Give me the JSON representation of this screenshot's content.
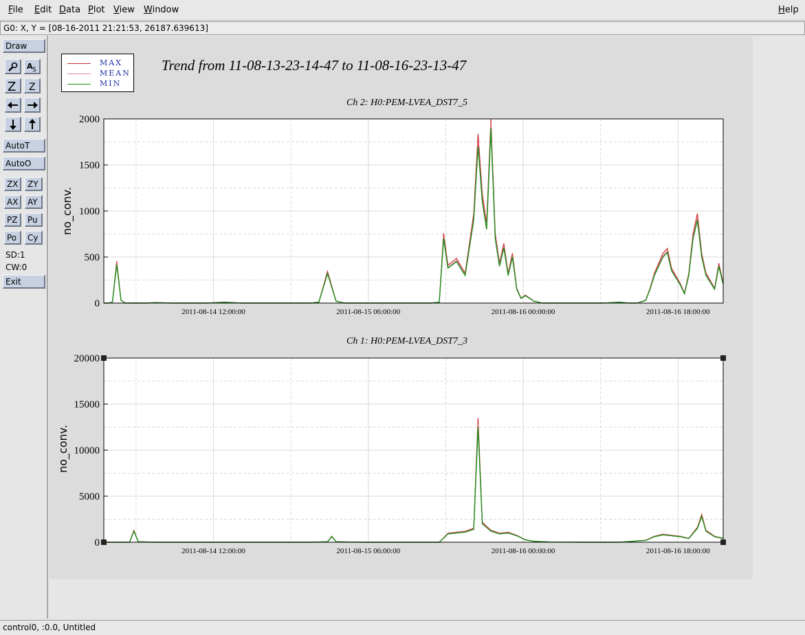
{
  "menubar": {
    "items": [
      {
        "label": "File",
        "ul": "F",
        "rest": "ile"
      },
      {
        "label": "Edit",
        "ul": "E",
        "rest": "dit"
      },
      {
        "label": "Data",
        "ul": "D",
        "rest": "ata"
      },
      {
        "label": "Plot",
        "ul": "P",
        "rest": "lot"
      },
      {
        "label": "View",
        "ul": "V",
        "rest": "iew"
      },
      {
        "label": "Window",
        "ul": "W",
        "rest": "indow"
      }
    ],
    "help": {
      "ul": "H",
      "rest": "elp"
    }
  },
  "coordbar": {
    "text": "G0: X, Y = [08-16-2011 21:21:53, 26187.639613]"
  },
  "toolbar": {
    "draw": "Draw",
    "autot": "AutoT",
    "autoo": "AutoO",
    "zx": "ZX",
    "zy": "ZY",
    "ax": "AX",
    "ay": "AY",
    "pz": "PZ",
    "pu": "Pu",
    "po": "Po",
    "cy": "Cy",
    "sd": "SD:1",
    "cw": "CW:0",
    "exit": "Exit"
  },
  "legend": {
    "entries": [
      {
        "name": "MAX",
        "color": "#cc2b2b"
      },
      {
        "name": "MEAN",
        "color": "#e87fa0"
      },
      {
        "name": "MIN",
        "color": "#1a8c1a"
      }
    ]
  },
  "trend_title": "Trend from 11-08-13-23-14-47 to 11-08-16-23-13-47",
  "statusbar": {
    "text": "control0, :0.0, Untitled"
  },
  "chart_data": [
    {
      "type": "line",
      "title": "Ch 2: H0:PEM-LVEA_DST7_5",
      "ylabel": "no_conv.",
      "xlabel": "",
      "x_tick_labels": [
        "2011-08-14 12:00:00",
        "2011-08-15 06:00:00",
        "2011-08-16 00:00:00",
        "2011-08-16 18:00:00"
      ],
      "y_ticks": [
        0,
        500,
        1000,
        1500,
        2000
      ],
      "y_tick_labels": [
        "0",
        "500",
        "1000",
        "1500",
        "2000"
      ],
      "ylim": [
        0,
        2000
      ],
      "xlim_hours": [
        0,
        72
      ],
      "grid": true,
      "series": [
        {
          "name": "MIN",
          "color": "#1a8c1a"
        },
        {
          "name": "MAX",
          "color": "#cc2b2b"
        },
        {
          "name": "MEAN",
          "color": "#e87fa0"
        }
      ],
      "x_hours": [
        0,
        0.5,
        1,
        1.5,
        2,
        2.5,
        3,
        3.5,
        4,
        5,
        6,
        8,
        10,
        12,
        14,
        16,
        18,
        20,
        22,
        24,
        25,
        26,
        27,
        28,
        30,
        32,
        34,
        36,
        38,
        39,
        39.5,
        40,
        41,
        42,
        43,
        43.5,
        44,
        44.5,
        45,
        45.5,
        46,
        46.5,
        47,
        47.5,
        48,
        48.5,
        49,
        50,
        51,
        52,
        54,
        56,
        58,
        60,
        61,
        62,
        63,
        63.5,
        64,
        65,
        65.5,
        66,
        67,
        67.5,
        68,
        68.5,
        69,
        69.5,
        70,
        71,
        71.5,
        72
      ],
      "values": [
        0,
        0,
        10,
        420,
        30,
        0,
        0,
        0,
        0,
        0,
        5,
        0,
        0,
        0,
        10,
        0,
        0,
        0,
        0,
        0,
        10,
        320,
        20,
        0,
        0,
        0,
        0,
        0,
        0,
        10,
        700,
        380,
        450,
        300,
        900,
        1700,
        1100,
        800,
        1900,
        700,
        400,
        600,
        300,
        500,
        150,
        50,
        80,
        20,
        0,
        0,
        0,
        0,
        0,
        10,
        0,
        0,
        30,
        150,
        300,
        500,
        550,
        350,
        200,
        100,
        300,
        700,
        900,
        500,
        300,
        150,
        400,
        200
      ]
    },
    {
      "type": "line",
      "title": "Ch 1: H0:PEM-LVEA_DST7_3",
      "ylabel": "no_conv.",
      "xlabel": "",
      "x_tick_labels": [
        "2011-08-14 12:00:00",
        "2011-08-15 06:00:00",
        "2011-08-16 00:00:00",
        "2011-08-16 18:00:00"
      ],
      "y_ticks": [
        0,
        5000,
        10000,
        15000,
        20000
      ],
      "y_tick_labels": [
        "0",
        "5000",
        "10000",
        "15000",
        "20000"
      ],
      "ylim": [
        0,
        20000
      ],
      "xlim_hours": [
        0,
        72
      ],
      "grid": true,
      "series": [
        {
          "name": "MIN",
          "color": "#1a8c1a"
        },
        {
          "name": "MAX",
          "color": "#cc2b2b"
        },
        {
          "name": "MEAN",
          "color": "#e87fa0"
        }
      ],
      "x_hours": [
        0,
        1,
        3,
        3.5,
        4,
        6,
        10,
        16,
        20,
        24,
        26,
        26.5,
        27,
        30,
        36,
        39,
        40,
        41,
        42,
        43,
        43.5,
        44,
        45,
        46,
        47,
        48,
        49,
        50,
        52,
        56,
        60,
        63,
        64,
        65,
        66,
        67,
        68,
        69,
        69.5,
        70,
        71,
        72
      ],
      "values": [
        0,
        0,
        0,
        1200,
        50,
        0,
        0,
        0,
        0,
        0,
        50,
        600,
        50,
        0,
        0,
        0,
        900,
        1000,
        1100,
        1400,
        12500,
        2000,
        1200,
        900,
        1000,
        700,
        250,
        100,
        20,
        0,
        0,
        200,
        600,
        800,
        700,
        600,
        400,
        1500,
        2800,
        1200,
        600,
        400
      ]
    }
  ]
}
